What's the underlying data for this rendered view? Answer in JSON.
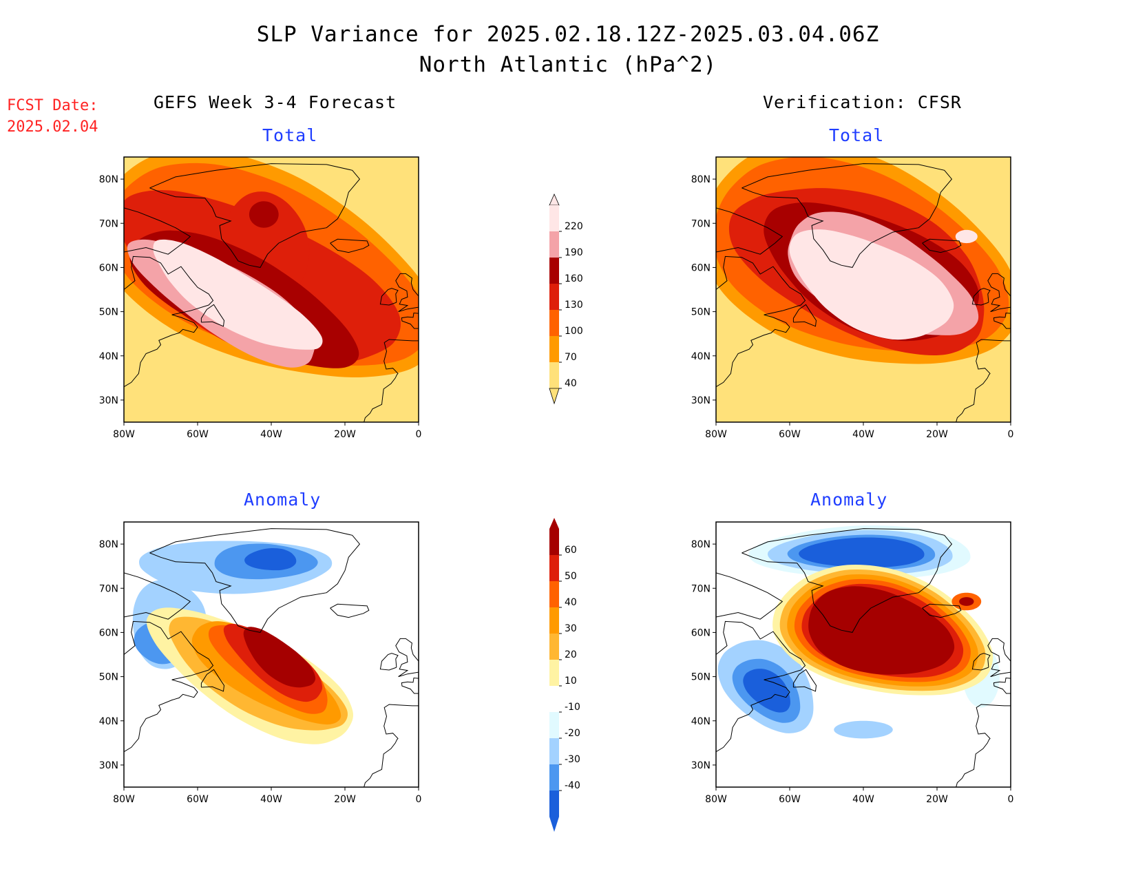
{
  "title": {
    "line1": "SLP Variance for 2025.02.18.12Z-2025.03.04.06Z",
    "line2": "North Atlantic (hPa^2)"
  },
  "forecast_date": {
    "label": "FCST Date:",
    "value": "2025.02.04"
  },
  "columns": {
    "left": "GEFS Week 3-4 Forecast",
    "right": "Verification: CFSR"
  },
  "panel_titles": {
    "top_left": "Total",
    "top_right": "Total",
    "bottom_left": "Anomaly",
    "bottom_right": "Anomaly"
  },
  "map_axes": {
    "lat_ticks": [
      "80N",
      "70N",
      "60N",
      "50N",
      "40N",
      "30N"
    ],
    "lon_ticks": [
      "80W",
      "60W",
      "40W",
      "20W",
      "0"
    ],
    "lat_range": [
      25,
      85
    ],
    "lon_range": [
      -80,
      0
    ]
  },
  "colorbars": {
    "total": {
      "levels": [
        "220",
        "190",
        "160",
        "130",
        "100",
        "70",
        "40"
      ],
      "colors": [
        "#ffe6e6",
        "#f4a3a8",
        "#a80000",
        "#de1f0a",
        "#ff6200",
        "#ff9a00",
        "#ffe17a"
      ]
    },
    "anomaly": {
      "levels": [
        "60",
        "50",
        "40",
        "30",
        "20",
        "10",
        "-10",
        "-20",
        "-30",
        "-40"
      ],
      "colors": [
        "#a50000",
        "#de1f0a",
        "#ff6200",
        "#ff9a00",
        "#ffb732",
        "#fff3a3",
        "#ffffff",
        "#e1faff",
        "#a3d2ff",
        "#4c97f0",
        "#1a5fdb"
      ]
    }
  }
}
